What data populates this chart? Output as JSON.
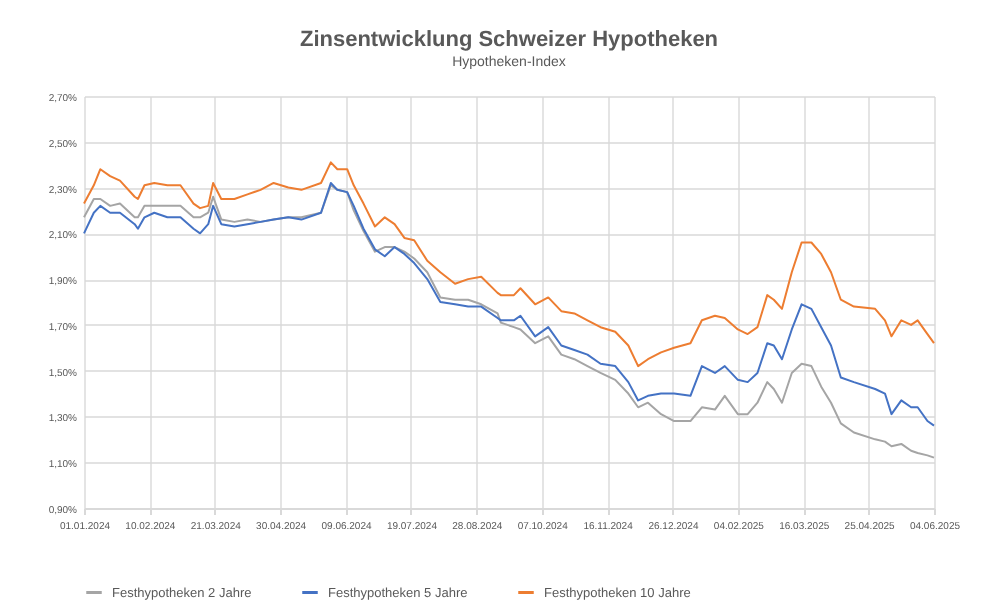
{
  "chart_data": {
    "type": "line",
    "title": "Zinsentwicklung Schweizer Hypotheken",
    "subtitle": "Hypotheken-Index",
    "x": [
      "2024-01-01",
      "2024-01-07",
      "2024-01-11",
      "2024-01-17",
      "2024-01-23",
      "2024-02-01",
      "2024-02-03",
      "2024-02-07",
      "2024-02-13",
      "2024-02-21",
      "2024-02-29",
      "2024-03-08",
      "2024-03-12",
      "2024-03-17",
      "2024-03-20",
      "2024-03-25",
      "2024-04-02",
      "2024-04-10",
      "2024-04-18",
      "2024-04-26",
      "2024-05-05",
      "2024-05-13",
      "2024-05-25",
      "2024-05-31",
      "2024-06-04",
      "2024-06-10",
      "2024-06-14",
      "2024-06-20",
      "2024-06-27",
      "2024-07-03",
      "2024-07-09",
      "2024-07-15",
      "2024-07-21",
      "2024-07-29",
      "2024-08-06",
      "2024-08-15",
      "2024-08-23",
      "2024-08-31",
      "2024-09-10",
      "2024-09-12",
      "2024-09-20",
      "2024-09-24",
      "2024-10-03",
      "2024-10-11",
      "2024-10-19",
      "2024-10-27",
      "2024-11-04",
      "2024-11-12",
      "2024-11-21",
      "2024-11-29",
      "2024-12-05",
      "2024-12-11",
      "2024-12-19",
      "2024-12-27",
      "2025-01-06",
      "2025-01-13",
      "2025-01-21",
      "2025-01-27",
      "2025-02-04",
      "2025-02-10",
      "2025-02-16",
      "2025-02-22",
      "2025-02-26",
      "2025-03-03",
      "2025-03-09",
      "2025-03-15",
      "2025-03-21",
      "2025-03-27",
      "2025-04-02",
      "2025-04-08",
      "2025-04-16",
      "2025-04-29",
      "2025-05-05",
      "2025-05-09",
      "2025-05-15",
      "2025-05-21",
      "2025-05-25",
      "2025-05-31",
      "2025-06-04"
    ],
    "series": [
      {
        "name": "Festhypotheken 2 Jahre",
        "color": "#a5a5a5",
        "values": [
          2.17,
          2.25,
          2.25,
          2.22,
          2.23,
          2.17,
          2.17,
          2.22,
          2.22,
          2.22,
          2.22,
          2.17,
          2.17,
          2.19,
          2.26,
          2.16,
          2.15,
          2.16,
          2.15,
          2.16,
          2.17,
          2.17,
          2.19,
          2.31,
          2.29,
          2.28,
          2.2,
          2.11,
          2.02,
          2.04,
          2.04,
          2.02,
          1.99,
          1.93,
          1.82,
          1.81,
          1.81,
          1.79,
          1.75,
          1.71,
          1.69,
          1.68,
          1.62,
          1.65,
          1.57,
          1.55,
          1.52,
          1.49,
          1.46,
          1.4,
          1.34,
          1.36,
          1.31,
          1.28,
          1.28,
          1.34,
          1.33,
          1.39,
          1.31,
          1.31,
          1.36,
          1.45,
          1.42,
          1.36,
          1.49,
          1.53,
          1.52,
          1.43,
          1.36,
          1.27,
          1.23,
          1.2,
          1.19,
          1.17,
          1.18,
          1.15,
          1.14,
          1.13,
          1.12
        ]
      },
      {
        "name": "Festhypotheken 5 Jahre",
        "color": "#4472c4",
        "values": [
          2.1,
          2.19,
          2.22,
          2.19,
          2.19,
          2.14,
          2.12,
          2.17,
          2.19,
          2.17,
          2.17,
          2.12,
          2.1,
          2.14,
          2.22,
          2.14,
          2.13,
          2.14,
          2.15,
          2.16,
          2.17,
          2.16,
          2.19,
          2.32,
          2.29,
          2.28,
          2.22,
          2.12,
          2.03,
          2.0,
          2.04,
          2.01,
          1.97,
          1.9,
          1.8,
          1.79,
          1.78,
          1.78,
          1.73,
          1.72,
          1.72,
          1.74,
          1.65,
          1.69,
          1.61,
          1.59,
          1.57,
          1.53,
          1.52,
          1.45,
          1.37,
          1.39,
          1.4,
          1.4,
          1.39,
          1.52,
          1.49,
          1.52,
          1.46,
          1.45,
          1.49,
          1.62,
          1.61,
          1.55,
          1.68,
          1.79,
          1.77,
          1.69,
          1.61,
          1.47,
          1.45,
          1.42,
          1.4,
          1.31,
          1.37,
          1.34,
          1.34,
          1.28,
          1.26
        ]
      },
      {
        "name": "Festhypotheken 10 Jahre",
        "color": "#ed7d31",
        "values": [
          2.23,
          2.31,
          2.38,
          2.35,
          2.33,
          2.26,
          2.25,
          2.31,
          2.32,
          2.31,
          2.31,
          2.23,
          2.21,
          2.22,
          2.32,
          2.25,
          2.25,
          2.27,
          2.29,
          2.32,
          2.3,
          2.29,
          2.32,
          2.41,
          2.38,
          2.38,
          2.31,
          2.23,
          2.13,
          2.17,
          2.14,
          2.08,
          2.07,
          1.98,
          1.93,
          1.88,
          1.9,
          1.91,
          1.84,
          1.83,
          1.83,
          1.86,
          1.79,
          1.82,
          1.76,
          1.75,
          1.72,
          1.69,
          1.67,
          1.61,
          1.52,
          1.55,
          1.58,
          1.6,
          1.62,
          1.72,
          1.74,
          1.73,
          1.68,
          1.66,
          1.69,
          1.83,
          1.81,
          1.77,
          1.93,
          2.06,
          2.06,
          2.01,
          1.93,
          1.81,
          1.78,
          1.77,
          1.72,
          1.65,
          1.72,
          1.7,
          1.72,
          1.66,
          1.62
        ]
      }
    ],
    "xlim": [
      "2024-01-01",
      "2025-06-04"
    ],
    "xticks": [
      {
        "value": "2024-01-01",
        "label": "01.01.2024"
      },
      {
        "value": "2024-02-10",
        "label": "10.02.2024"
      },
      {
        "value": "2024-03-21",
        "label": "21.03.2024"
      },
      {
        "value": "2024-04-30",
        "label": "30.04.2024"
      },
      {
        "value": "2024-06-09",
        "label": "09.06.2024"
      },
      {
        "value": "2024-07-19",
        "label": "19.07.2024"
      },
      {
        "value": "2024-08-28",
        "label": "28.08.2024"
      },
      {
        "value": "2024-10-07",
        "label": "07.10.2024"
      },
      {
        "value": "2024-11-16",
        "label": "16.11.2024"
      },
      {
        "value": "2024-12-26",
        "label": "26.12.2024"
      },
      {
        "value": "2025-02-04",
        "label": "04.02.2025"
      },
      {
        "value": "2025-03-16",
        "label": "16.03.2025"
      },
      {
        "value": "2025-04-25",
        "label": "25.04.2025"
      },
      {
        "value": "2025-06-04",
        "label": "04.06.2025"
      }
    ],
    "ylim": [
      0.9,
      2.7
    ],
    "yticks": [
      {
        "value": 0.9,
        "label": "0,90%"
      },
      {
        "value": 1.1,
        "label": "1,10%"
      },
      {
        "value": 1.3,
        "label": "1,30%"
      },
      {
        "value": 1.5,
        "label": "1,50%"
      },
      {
        "value": 1.7,
        "label": "1,70%"
      },
      {
        "value": 1.9,
        "label": "1,90%"
      },
      {
        "value": 2.1,
        "label": "2,10%"
      },
      {
        "value": 2.3,
        "label": "2,30%"
      },
      {
        "value": 2.5,
        "label": "2,50%"
      },
      {
        "value": 2.7,
        "label": "2,70%"
      }
    ],
    "grid": true,
    "legend": "bottom",
    "line_style": "solid"
  }
}
